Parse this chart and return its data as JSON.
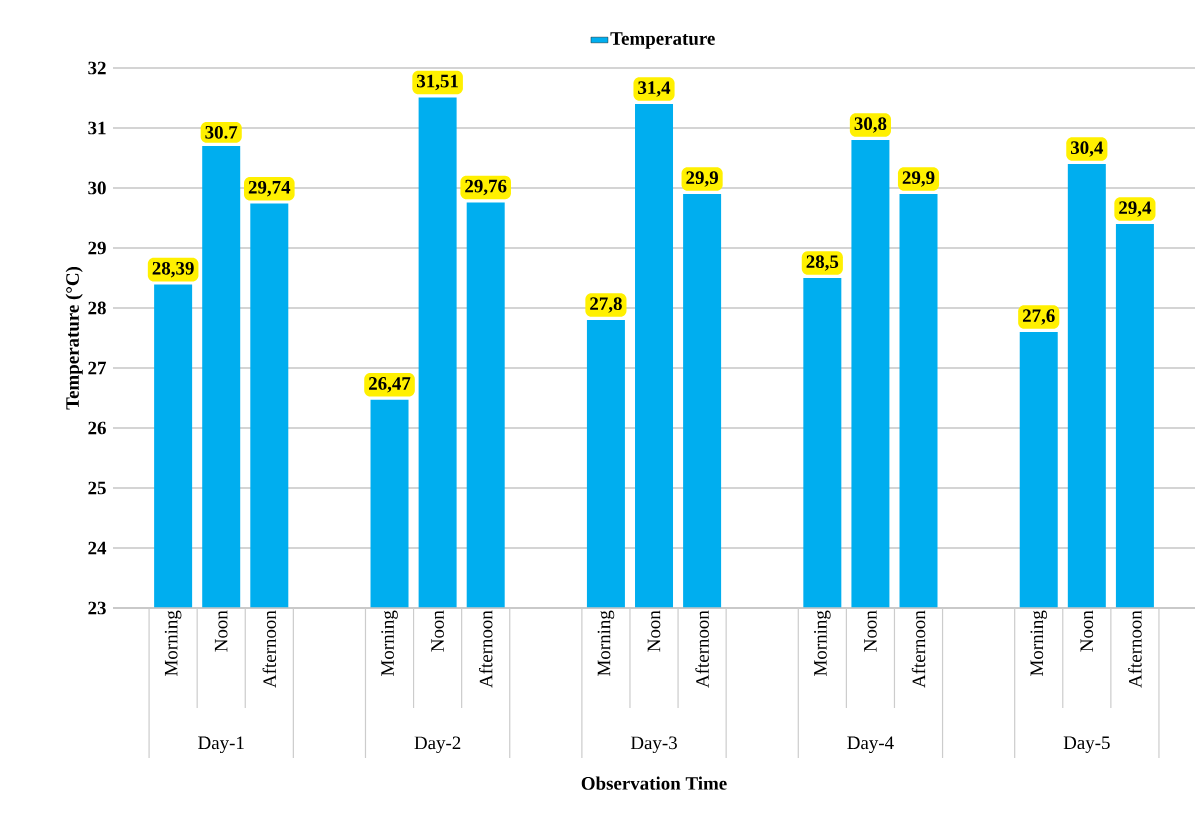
{
  "chart_data": {
    "type": "bar",
    "xlabel": "Observation Time",
    "ylabel": "Temperature (°C)",
    "categories": [
      "Morning",
      "Noon",
      "Afternoon",
      "Morning",
      "Noon",
      "Afternoon",
      "Morning",
      "Noon",
      "Afternoon",
      "Morning",
      "Noon",
      "Afternoon",
      "Morning",
      "Noon",
      "Afternoon"
    ],
    "annotations": [
      "Day-1",
      "Day-2",
      "Day-3",
      "Day-4",
      "Day-5"
    ],
    "series": [
      {
        "name": "Temperature",
        "color": "#00aeef",
        "values": [
          28.39,
          30.7,
          29.74,
          26.47,
          31.51,
          29.76,
          27.8,
          31.4,
          29.9,
          28.5,
          30.8,
          29.9,
          27.6,
          30.4,
          29.4
        ],
        "value_labels": [
          "28,39",
          "30.7",
          "29,74",
          "26,47",
          "31,51",
          "29,76",
          "27,8",
          "31,4",
          "29,9",
          "28,5",
          "30,8",
          "29,9",
          "27,6",
          "30,4",
          "29,4"
        ]
      }
    ],
    "ylim": [
      23,
      32
    ],
    "yticks": [
      23,
      24,
      25,
      26,
      27,
      28,
      29,
      30,
      31,
      32
    ],
    "grid": "y",
    "legend": "top"
  }
}
